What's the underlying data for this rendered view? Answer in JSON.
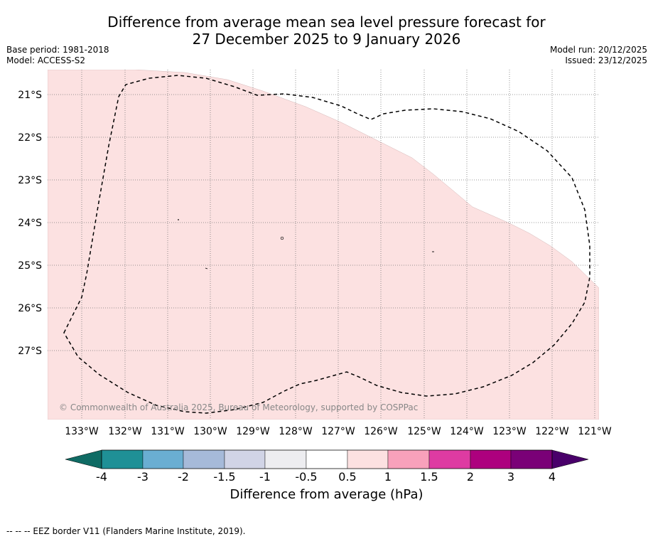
{
  "title": {
    "line1": "Difference from average mean sea level pressure forecast for",
    "line2": "27 December 2025 to 9 January 2026"
  },
  "meta": {
    "base_period": "Base period: 1981-2018",
    "model": "Model: ACCESS-S2",
    "model_run": "Model run: 20/12/2025",
    "issued": "Issued: 23/12/2025"
  },
  "map": {
    "latitudes": [
      "21°S",
      "22°S",
      "23°S",
      "24°S",
      "25°S",
      "26°S",
      "27°S"
    ],
    "longitudes": [
      "133°W",
      "132°W",
      "131°W",
      "130°W",
      "129°W",
      "128°W",
      "127°W",
      "126°W",
      "125°W",
      "124°W",
      "123°W",
      "122°W",
      "121°W"
    ],
    "copyright": "© Commonwealth of Australia 2025, Bureau of Meteorology, supported by COSPPac",
    "anomaly_fill_color": "#fce1e1",
    "shaded_category": "0.5 to 1"
  },
  "colorbar": {
    "ticks": [
      "-4",
      "-3",
      "-2",
      "-1.5",
      "-1",
      "-0.5",
      "0.5",
      "1",
      "1.5",
      "2",
      "3",
      "4"
    ],
    "colors": [
      "#0f6b64",
      "#1f9096",
      "#6aaed2",
      "#a6bad9",
      "#d1d4e6",
      "#ededf0",
      "#ffffff",
      "#fce1e1",
      "#f8a1bb",
      "#de3ba2",
      "#ad007e",
      "#7a0177",
      "#49006a"
    ],
    "title": "Difference from average (hPa)"
  },
  "footer": "--  --  -- EEZ border V11 (Flanders Marine Institute, 2019)."
}
